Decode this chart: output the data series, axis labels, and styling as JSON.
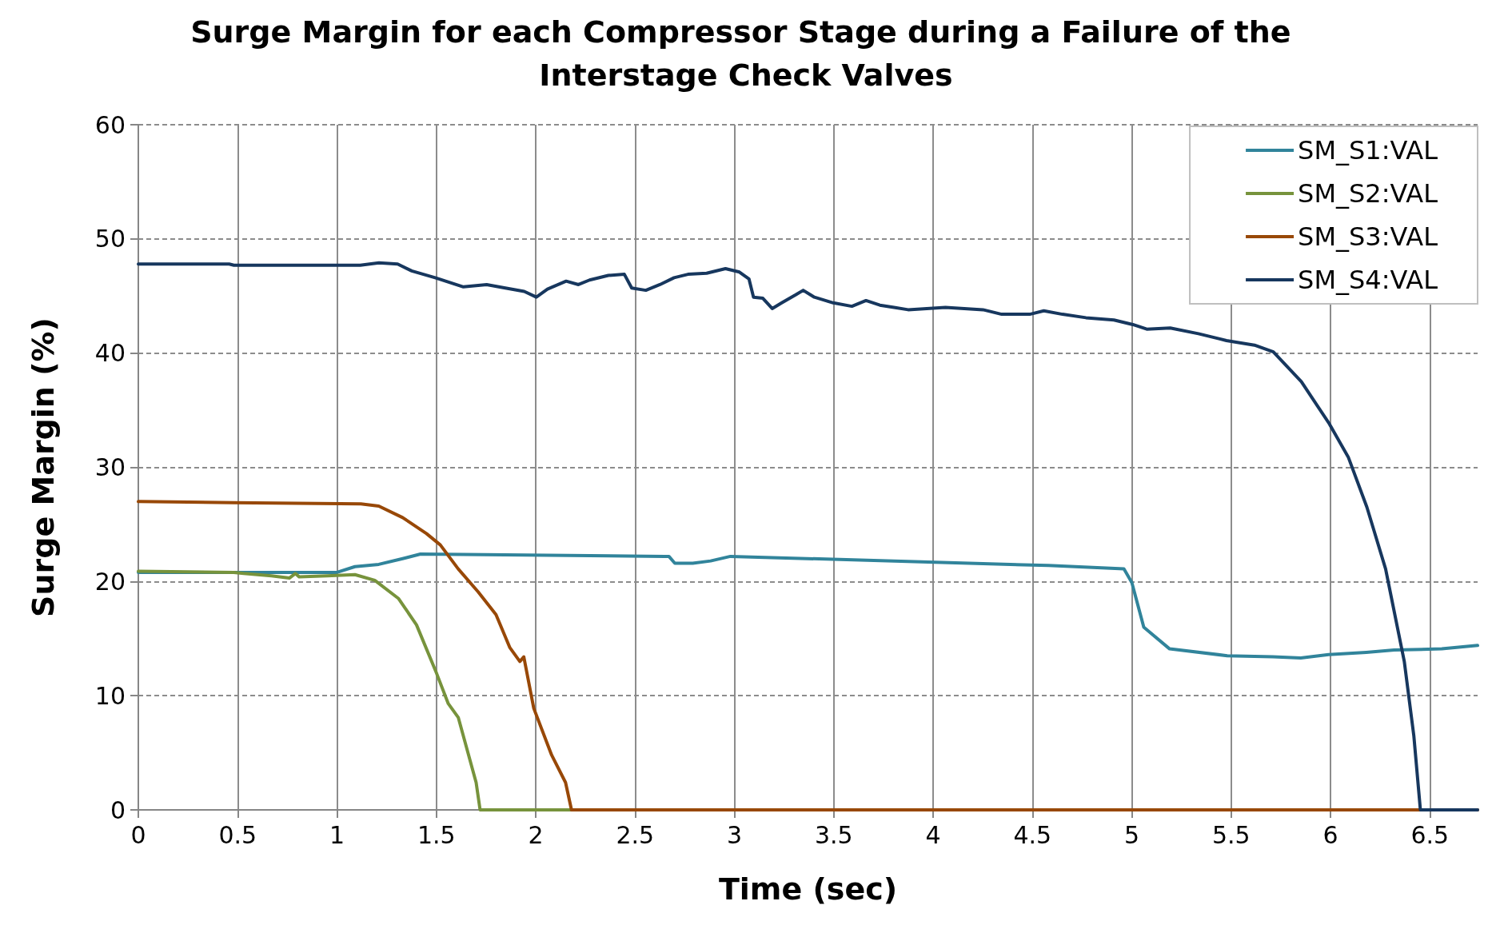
{
  "chart_data": {
    "type": "line",
    "title": "Surge Margin for each Compressor Stage during a Failure of the Interstage Check Valves",
    "xlabel": "Time (sec)",
    "ylabel": "Surge Margin (%)",
    "xlim": [
      0,
      6.74
    ],
    "xticks": [
      0,
      0.5,
      1,
      1.5,
      2,
      2.5,
      3,
      3.5,
      4,
      4.5,
      5,
      5.5,
      6,
      6.5
    ],
    "ylim": [
      0,
      60
    ],
    "yticks": [
      0,
      10,
      20,
      30,
      40,
      50,
      60
    ],
    "grid": true,
    "legend": "top right",
    "marker": "none",
    "line_style": "solid",
    "series": [
      {
        "name": "SM_S1:VAL",
        "color": "#31849b",
        "x": [
          0,
          1.0,
          1.09,
          1.21,
          1.33,
          1.42,
          2.65,
          2.67,
          2.7,
          2.74,
          2.79,
          2.88,
          2.98,
          4.58,
          4.96,
          5.0,
          5.06,
          5.19,
          5.48,
          5.71,
          5.85,
          5.99,
          6.18,
          6.32,
          6.56,
          6.74
        ],
        "values": [
          20.8,
          20.8,
          21.3,
          21.5,
          22.0,
          22.4,
          22.2,
          22.2,
          21.6,
          21.6,
          21.6,
          21.8,
          22.2,
          21.4,
          21.1,
          19.9,
          16.0,
          14.1,
          13.5,
          13.4,
          13.3,
          13.6,
          13.8,
          14.0,
          14.1,
          14.4
        ]
      },
      {
        "name": "SM_S2:VAL",
        "color": "#77933c",
        "x": [
          0,
          0.48,
          0.53,
          0.67,
          0.76,
          0.79,
          0.81,
          0.95,
          1.09,
          1.19,
          1.31,
          1.4,
          1.5,
          1.56,
          1.61,
          1.7,
          1.72,
          2.18
        ],
        "values": [
          20.9,
          20.8,
          20.7,
          20.5,
          20.3,
          20.7,
          20.4,
          20.5,
          20.6,
          20.1,
          18.5,
          16.2,
          12.0,
          9.3,
          8.1,
          2.4,
          0,
          0
        ]
      },
      {
        "name": "SM_S3:VAL",
        "color": "#984807",
        "x": [
          0,
          0.48,
          1.12,
          1.21,
          1.33,
          1.45,
          1.52,
          1.61,
          1.71,
          1.8,
          1.87,
          1.92,
          1.94,
          1.99,
          2.08,
          2.15,
          2.18,
          6.74
        ],
        "values": [
          27.0,
          26.9,
          26.8,
          26.6,
          25.6,
          24.2,
          23.2,
          21.1,
          19.1,
          17.1,
          14.2,
          13.0,
          13.4,
          8.9,
          4.8,
          2.4,
          0,
          0
        ]
      },
      {
        "name": "SM_S4:VAL",
        "color": "#17375e",
        "x": [
          0,
          0.457,
          0.481,
          1.117,
          1.211,
          1.305,
          1.376,
          1.494,
          1.636,
          1.753,
          1.847,
          1.942,
          2.003,
          2.059,
          2.153,
          2.215,
          2.271,
          2.365,
          2.446,
          2.483,
          2.554,
          2.625,
          2.696,
          2.766,
          2.86,
          2.955,
          3.025,
          3.073,
          3.096,
          3.143,
          3.19,
          3.238,
          3.308,
          3.346,
          3.402,
          3.497,
          3.591,
          3.662,
          3.732,
          3.803,
          3.874,
          3.968,
          4.062,
          4.251,
          4.345,
          4.486,
          4.557,
          4.651,
          4.769,
          4.91,
          5.005,
          5.075,
          5.193,
          5.335,
          5.476,
          5.617,
          5.712,
          5.853,
          5.994,
          6.089,
          6.183,
          6.277,
          6.371,
          6.419,
          6.452,
          6.74
        ],
        "values": [
          47.8,
          47.8,
          47.7,
          47.7,
          47.9,
          47.8,
          47.2,
          46.6,
          45.8,
          46.0,
          45.7,
          45.4,
          44.9,
          45.6,
          46.3,
          46.0,
          46.4,
          46.8,
          46.9,
          45.7,
          45.5,
          46.0,
          46.6,
          46.9,
          47.0,
          47.4,
          47.1,
          46.5,
          44.9,
          44.8,
          43.9,
          44.4,
          45.1,
          45.5,
          44.9,
          44.4,
          44.1,
          44.6,
          44.2,
          44.0,
          43.8,
          43.9,
          44.0,
          43.8,
          43.4,
          43.4,
          43.7,
          43.4,
          43.1,
          42.9,
          42.5,
          42.1,
          42.2,
          41.7,
          41.1,
          40.7,
          40.1,
          37.5,
          33.8,
          30.9,
          26.5,
          21.1,
          13.0,
          6.5,
          0,
          0
        ]
      }
    ]
  }
}
